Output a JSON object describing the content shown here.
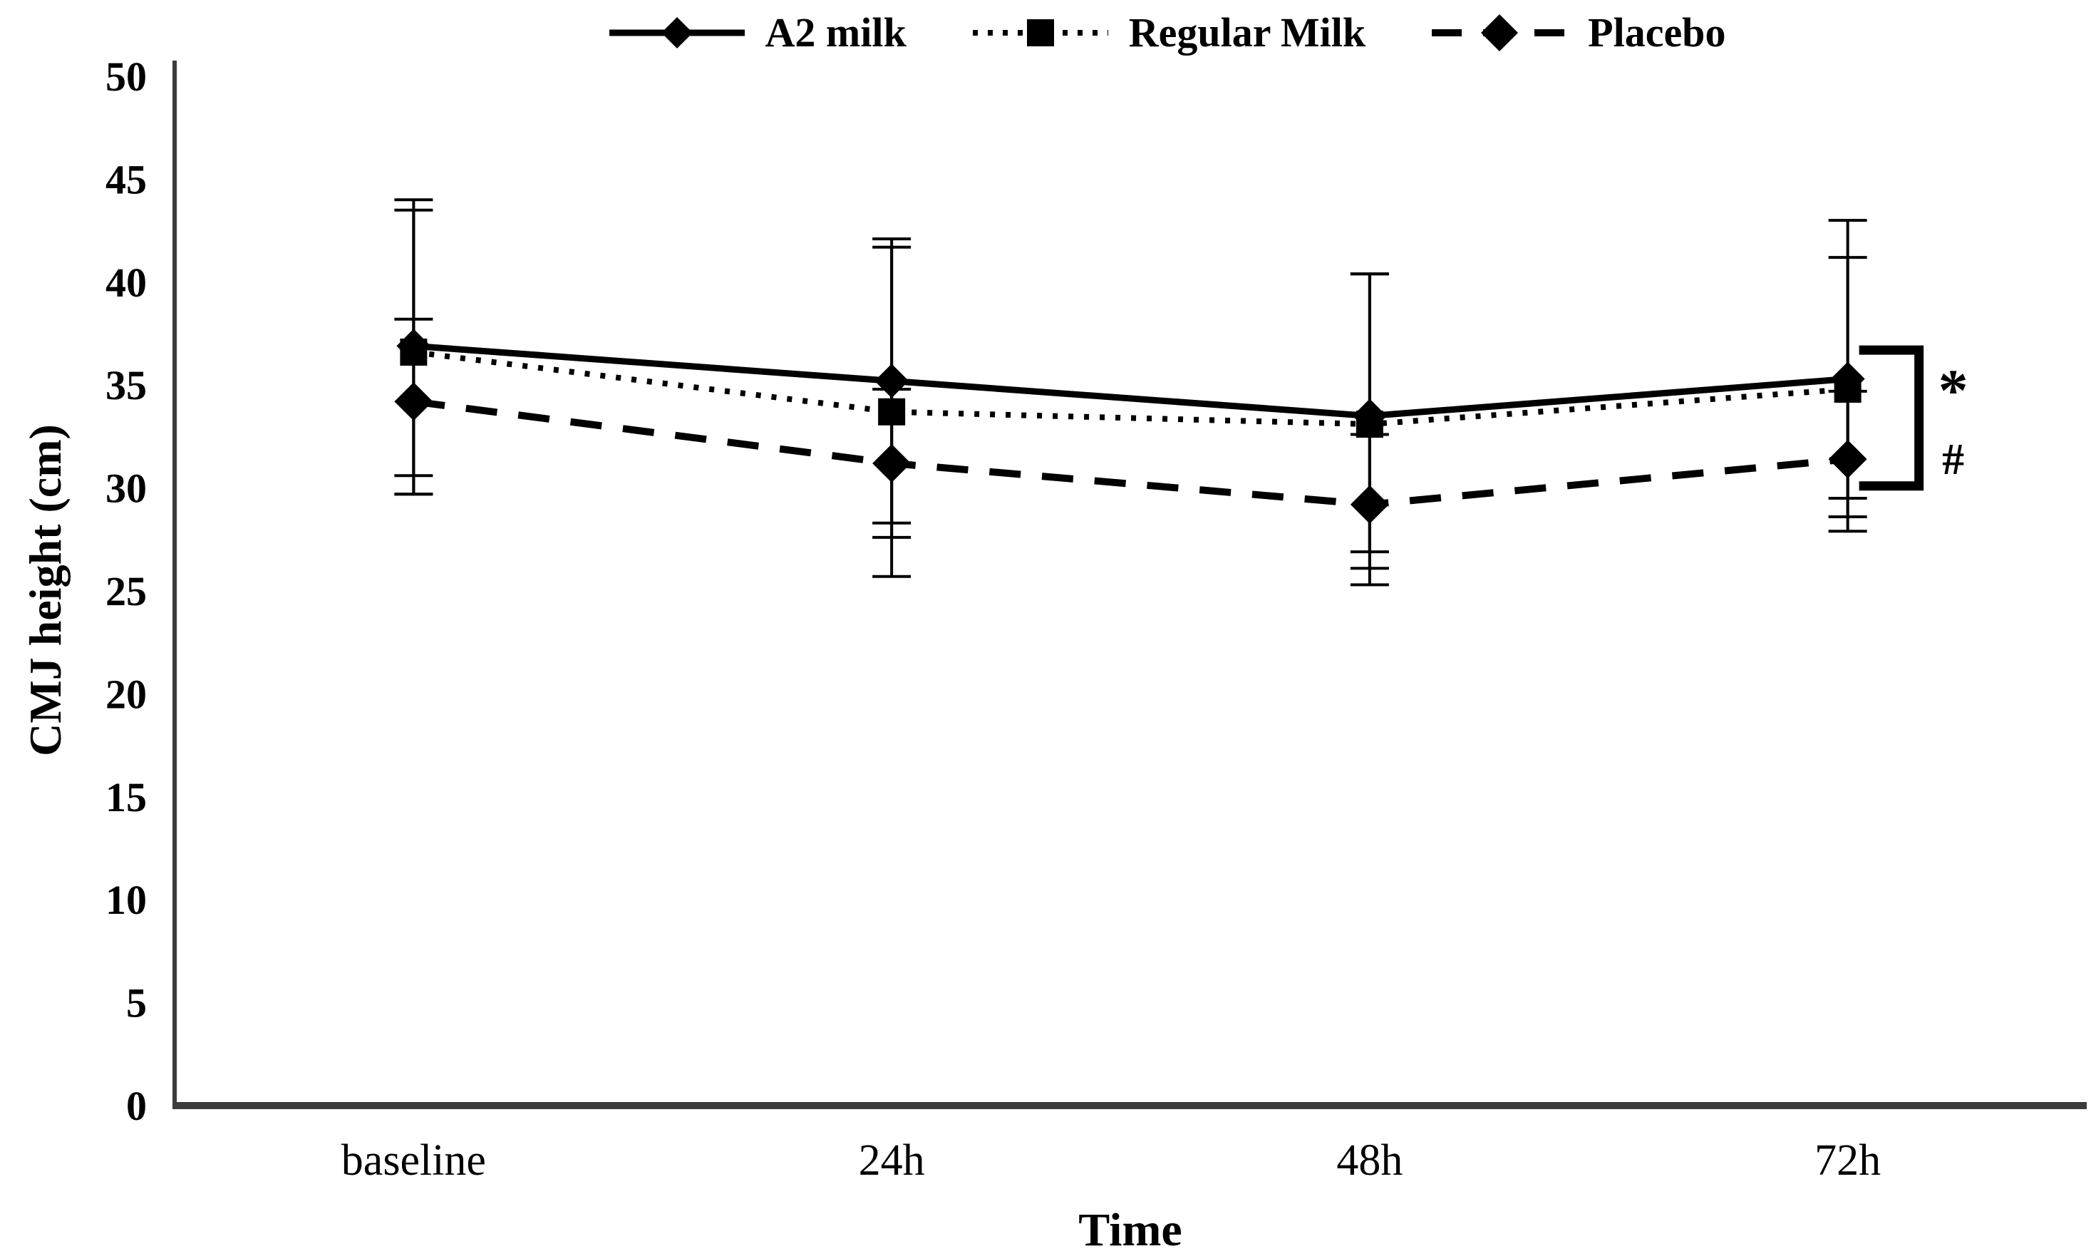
{
  "legend": {
    "items": [
      {
        "label": "A2 milk",
        "marker": "diamond",
        "line_style": "solid"
      },
      {
        "label": "Regular Milk",
        "marker": "square",
        "line_style": "dotted"
      },
      {
        "label": "Placebo",
        "marker": "diamond",
        "line_style": "dashed"
      }
    ]
  },
  "chart_data": {
    "type": "line",
    "title": "",
    "xlabel": "Time",
    "ylabel": "CMJ height (cm)",
    "categories": [
      "baseline",
      "24h",
      "48h",
      "72h"
    ],
    "ylim": [
      0,
      50
    ],
    "yticks": [
      0,
      5,
      10,
      15,
      20,
      25,
      30,
      35,
      40,
      45,
      50
    ],
    "grid": false,
    "legend_position": "top-center",
    "series": [
      {
        "name": "A2 milk",
        "line_style": "solid",
        "marker": "diamond",
        "color": "#000000",
        "values": [
          36.9,
          35.2,
          33.5,
          35.3
        ],
        "error_upper": [
          44.0,
          42.1,
          40.4,
          43.0
        ],
        "error_lower": [
          29.7,
          28.3,
          26.9,
          27.9
        ]
      },
      {
        "name": "Regular Milk",
        "line_style": "dotted",
        "marker": "square",
        "color": "#000000",
        "values": [
          36.6,
          33.7,
          33.1,
          34.8
        ],
        "error_upper": [
          43.5,
          41.7,
          40.4,
          41.2
        ],
        "error_lower": [
          29.7,
          25.7,
          25.3,
          28.6
        ]
      },
      {
        "name": "Placebo",
        "line_style": "dashed",
        "marker": "diamond",
        "color": "#000000",
        "values": [
          34.2,
          31.2,
          29.2,
          31.4
        ],
        "error_upper": [
          38.2,
          34.8,
          32.6,
          34.7
        ],
        "error_lower": [
          30.6,
          27.6,
          26.1,
          29.5
        ]
      }
    ],
    "annotations": {
      "bracket": {
        "at_category": "72h",
        "from_value": 36.7,
        "to_value": 30.1
      },
      "symbols": [
        {
          "text": "*",
          "value": 35.1
        },
        {
          "text": "#",
          "value": 31.4
        }
      ]
    }
  },
  "colors": {
    "series": "#000000",
    "axis": "#3c3c3c",
    "text": "#000000",
    "background": "#ffffff"
  }
}
